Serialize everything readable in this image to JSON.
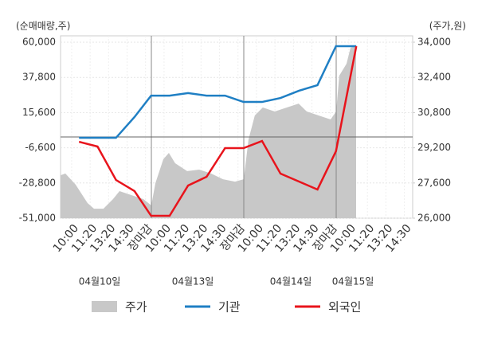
{
  "chart_data": {
    "type": "combo",
    "y_axis_label": "(순매매량,주)",
    "y2_axis_label": "(주가,원)",
    "categories": [
      "10:00",
      "11:20",
      "13:20",
      "14:30",
      "장마감",
      "10:00",
      "11:20",
      "13:20",
      "14:30",
      "장마감",
      "10:00",
      "11:20",
      "13:20",
      "14:30",
      "장마감",
      "10:00",
      "11:20",
      "13:20",
      "14:30"
    ],
    "category_colors": [
      "#333333",
      "#333333",
      "#333333",
      "#333333",
      "#e8141c",
      "#333333",
      "#333333",
      "#333333",
      "#333333",
      "#e8141c",
      "#333333",
      "#333333",
      "#333333",
      "#333333",
      "#e8141c",
      "#333333",
      "#333333",
      "#333333",
      "#333333"
    ],
    "dates": [
      "04월10일",
      "04월13일",
      "04월14일",
      "04월15일"
    ],
    "xlim": [
      -0.6,
      18.45
    ],
    "ylim": [
      -51000,
      60000
    ],
    "yticks": [
      {
        "value": -51000,
        "label": "-51,000"
      },
      {
        "value": -28800,
        "label": "-28,800"
      },
      {
        "value": -6600,
        "label": "-6,600"
      },
      {
        "value": 15600,
        "label": "15,600"
      },
      {
        "value": 37800,
        "label": "37,800"
      },
      {
        "value": 60000,
        "label": "60,000"
      }
    ],
    "y2lim": [
      26000,
      34000
    ],
    "y2ticks": [
      {
        "value": 26000,
        "label": "26,000"
      },
      {
        "value": 27600,
        "label": "27,600"
      },
      {
        "value": 29200,
        "label": "29,200"
      },
      {
        "value": 30800,
        "label": "30,800"
      },
      {
        "value": 32400,
        "label": "32,400"
      },
      {
        "value": 34000,
        "label": "34,000"
      }
    ],
    "grid": true,
    "series": [
      {
        "name": "주가",
        "color": "#c8c8c8",
        "kind": "area",
        "axis": "y2",
        "x": [
          -0.6,
          -0.34,
          0.22,
          0.86,
          1.21,
          1.72,
          2.24,
          2.59,
          3.23,
          3.88,
          4.31,
          4.53,
          4.96,
          5.26,
          5.6,
          6.25,
          6.9,
          7.54,
          8.19,
          8.84,
          9.31,
          9.57,
          9.91,
          10.34,
          10.99,
          11.64,
          12.28,
          12.72,
          13.36,
          14.01,
          14.31,
          14.48,
          14.87,
          15.09,
          15.39
        ],
        "values": [
          27950,
          28030,
          27520,
          26690,
          26430,
          26430,
          26870,
          27230,
          27050,
          26870,
          26580,
          27590,
          28680,
          28970,
          28500,
          28140,
          28210,
          28030,
          27770,
          27660,
          27770,
          29580,
          30670,
          31030,
          30850,
          31030,
          31210,
          30850,
          30670,
          30490,
          30850,
          32480,
          33020,
          33750,
          33820
        ]
      },
      {
        "name": "기관",
        "color": "#1f7fc4",
        "kind": "line",
        "x": [
          0.4,
          1.4,
          2.4,
          3.4,
          4.3,
          5.3,
          6.3,
          7.3,
          8.3,
          9.3,
          10.3,
          11.3,
          12.3,
          13.3,
          14.3,
          15.4
        ],
        "values": [
          -300,
          -300,
          -300,
          12800,
          26300,
          26300,
          27900,
          26300,
          26300,
          22300,
          22300,
          24800,
          29400,
          32900,
          57500,
          57500
        ]
      },
      {
        "name": "외국인",
        "color": "#e8141c",
        "kind": "line",
        "x": [
          0.4,
          1.4,
          2.4,
          3.4,
          4.3,
          5.3,
          6.3,
          7.3,
          8.3,
          9.3,
          10.3,
          11.3,
          12.3,
          13.3,
          14.3,
          15.4
        ],
        "values": [
          -2800,
          -5800,
          -26900,
          -33900,
          -49500,
          -49500,
          -30400,
          -24900,
          -6800,
          -6800,
          -2300,
          -22900,
          -27900,
          -32900,
          -8800,
          57500
        ]
      }
    ]
  }
}
